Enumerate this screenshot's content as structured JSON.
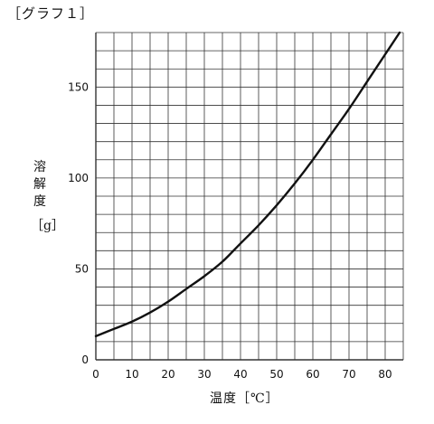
{
  "chart_data": {
    "type": "line",
    "title": "［グラフ１］",
    "xlabel": "温度［℃］",
    "ylabel": "溶解度",
    "ylabel_unit": "［g］",
    "xlim": [
      0,
      85
    ],
    "ylim": [
      0,
      180
    ],
    "x_ticks": [
      "0",
      "10",
      "20",
      "30",
      "40",
      "50",
      "60",
      "70",
      "80"
    ],
    "y_ticks": [
      "0",
      "50",
      "100",
      "150"
    ],
    "grid": true,
    "series": [
      {
        "x": [
          0,
          5,
          10,
          15,
          20,
          25,
          30,
          35,
          40,
          45,
          50,
          55,
          60,
          65,
          70,
          75,
          80,
          84
        ],
        "y": [
          13,
          17,
          21,
          26,
          32,
          39,
          46,
          54,
          64,
          74,
          85,
          97,
          110,
          124,
          138,
          153,
          168,
          180
        ]
      }
    ]
  }
}
